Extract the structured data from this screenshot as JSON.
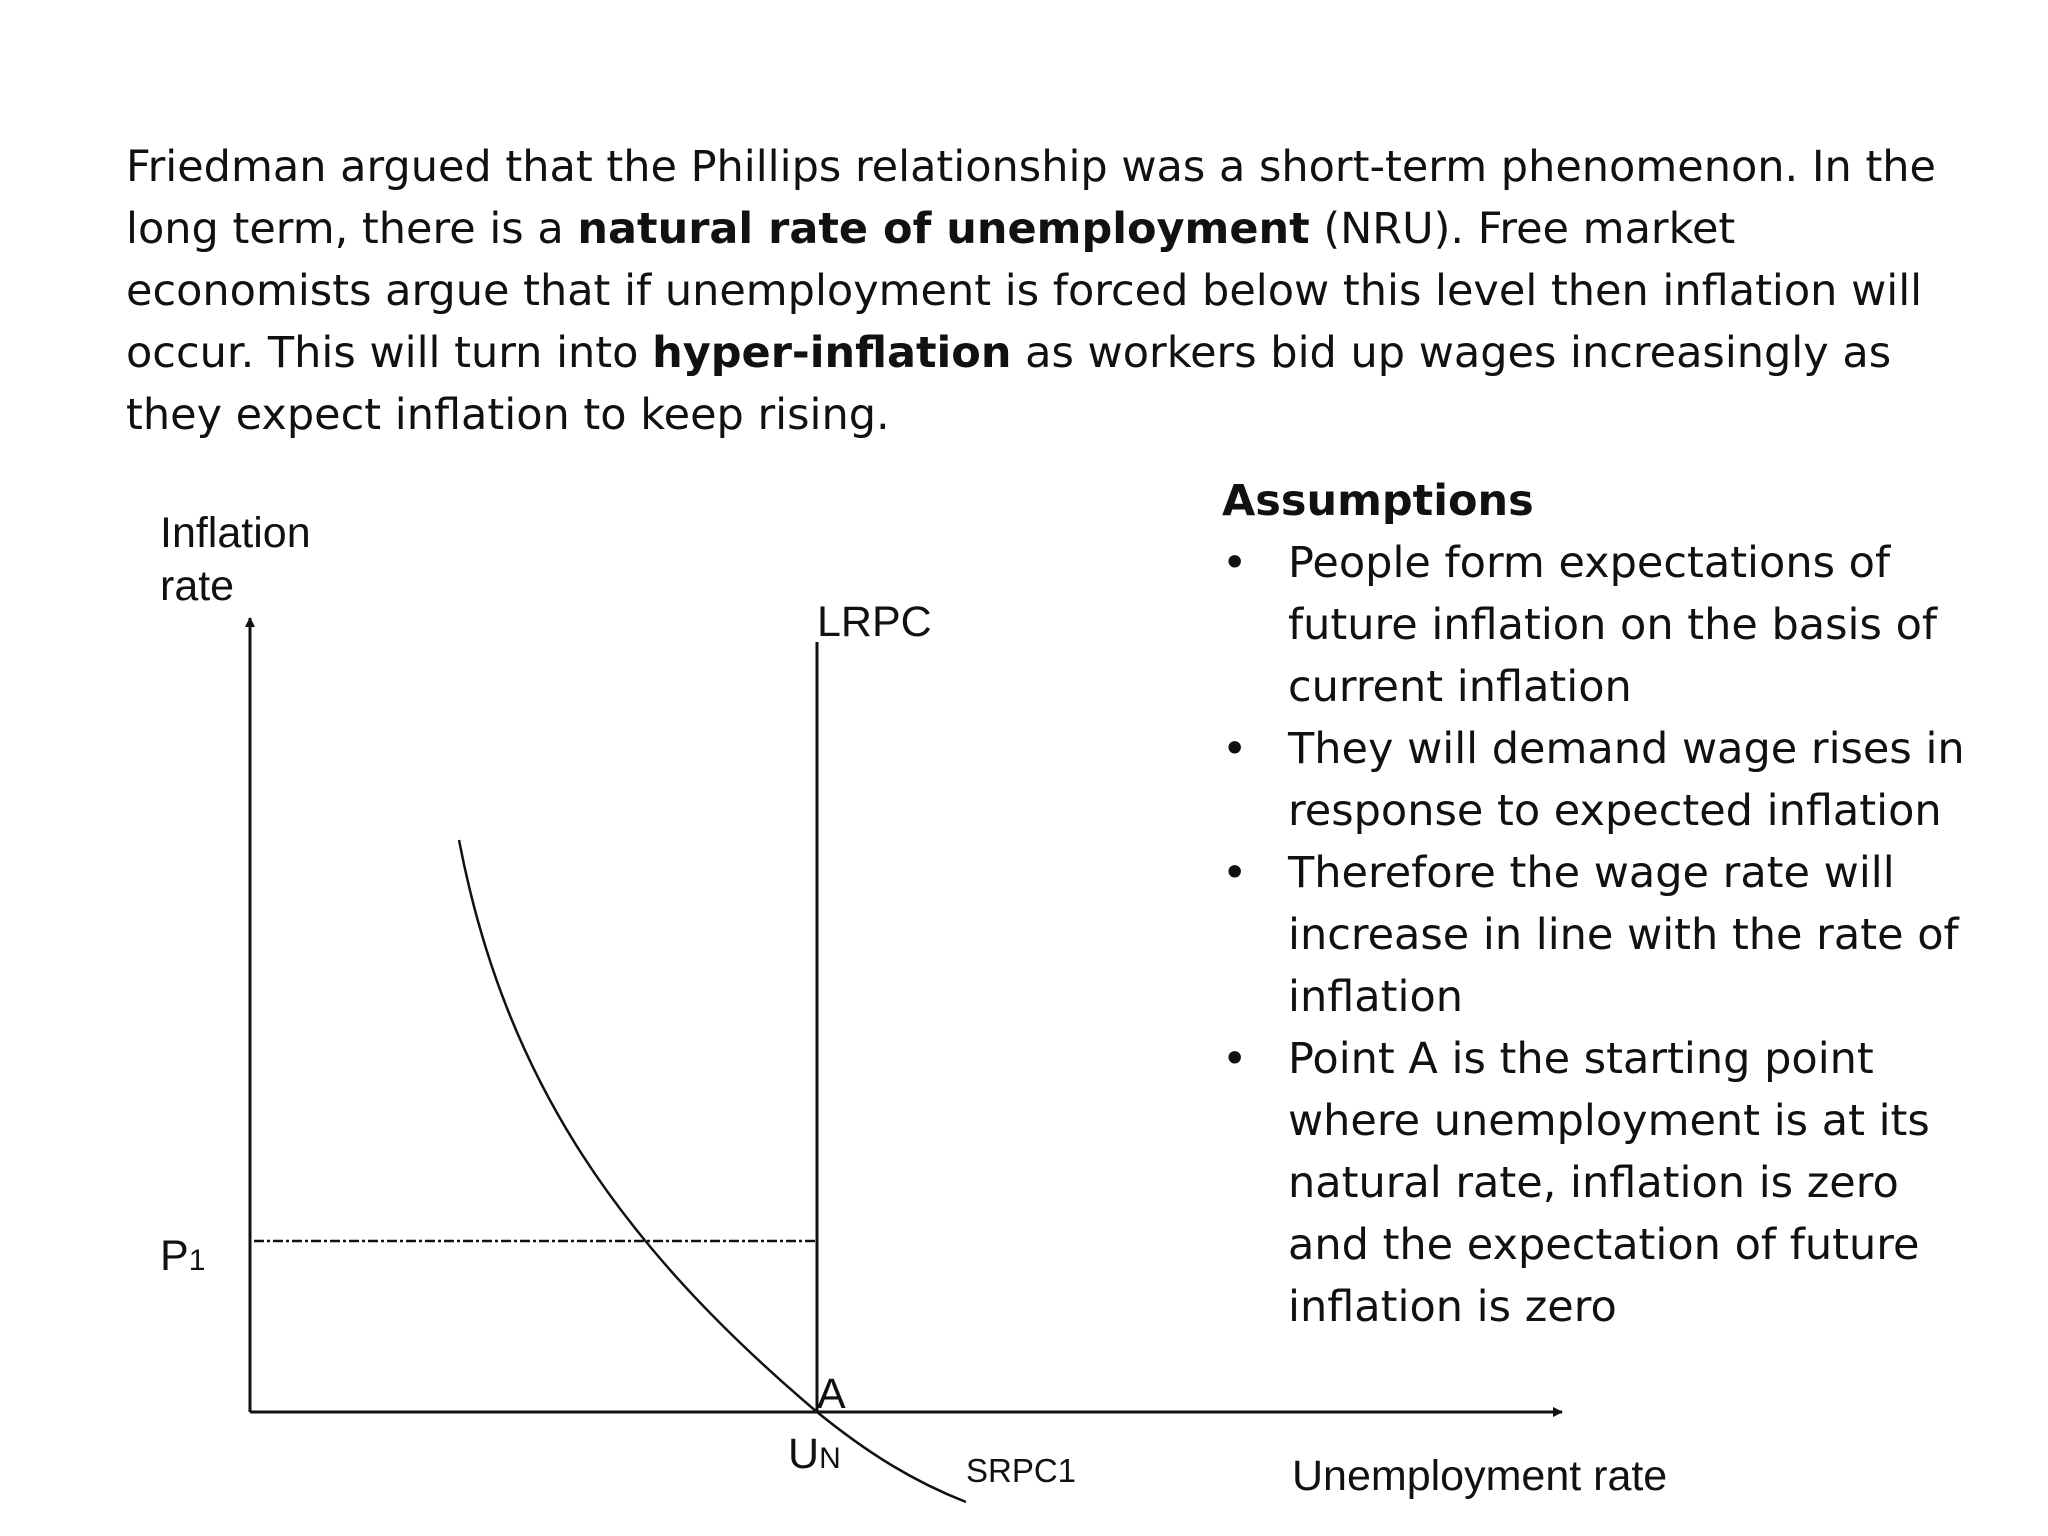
{
  "intro": {
    "s1": "Friedman argued that the Phillips relationship was a short-term phenomenon.  In the long term, there is a ",
    "b1": "natural rate of unemployment",
    "s2": " (NRU).  Free market economists argue that if unemployment is forced below this level then inflation will occur.  This will turn into ",
    "b2": "hyper-inflation",
    "s3": " as workers bid up wages increasingly as they expect inflation to keep rising."
  },
  "diagram": {
    "y_axis_label_line1": "Inflation",
    "y_axis_label_line2": "rate",
    "x_axis_label": "Unemployment rate",
    "lrpc_label": "LRPC",
    "srpc_label": "SRPC1",
    "p1_label": "P",
    "p1_sub": "1",
    "un_label": "U",
    "un_sub": "N",
    "point_a_label": "A"
  },
  "assumptions": {
    "title": "Assumptions",
    "bullet_glyph": "•",
    "items": [
      "People form expectations of future inflation on the basis of current inflation",
      "They will demand wage rises in response to expected inflation",
      "Therefore the wage rate will increase in line with the rate of inflation",
      "Point A is the starting point where unemployment is at its natural rate, inflation is zero and the expectation of future inflation is zero"
    ]
  }
}
